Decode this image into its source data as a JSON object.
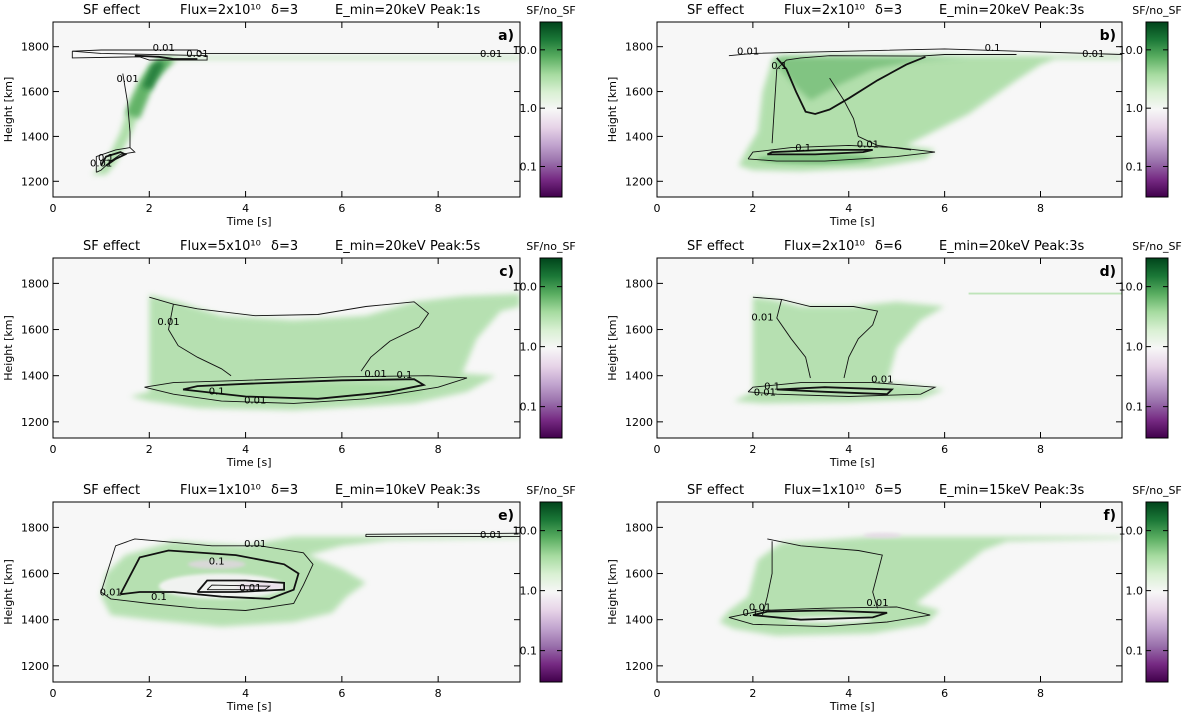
{
  "chart_data": [
    {
      "type": "heatmap",
      "panel": "a)",
      "title": [
        "SF effect",
        "Flux=2x10¹⁰",
        "δ=3",
        "E_min=20keV",
        "Peak:1s"
      ],
      "xlabel": "Time  [s]",
      "ylabel": "Height  [km]",
      "xlim": [
        0,
        9.7
      ],
      "ylim": [
        1130,
        1910
      ],
      "xticks": [
        0,
        2,
        4,
        6,
        8
      ],
      "yticks": [
        1200,
        1400,
        1600,
        1800
      ],
      "colorbar": {
        "label": "SF/no_SF",
        "scale": "log",
        "range": [
          0.03,
          30
        ],
        "ticks": [
          "0.1",
          "1.0",
          "10.0"
        ],
        "colormap": "purple-white-green"
      },
      "contour_labels": [
        {
          "text": "0.01",
          "x": 1.55,
          "y": 1642
        },
        {
          "text": "0.01",
          "x": 1.0,
          "y": 1265
        },
        {
          "text": "0.1",
          "x": 1.1,
          "y": 1290
        },
        {
          "text": "0.01",
          "x": 2.3,
          "y": 1780
        },
        {
          "text": "0.01",
          "x": 3.0,
          "y": 1755
        },
        {
          "text": "0.01",
          "x": 9.1,
          "y": 1755
        }
      ]
    },
    {
      "type": "heatmap",
      "panel": "b)",
      "title": [
        "SF effect",
        "Flux=2x10¹⁰",
        "δ=3",
        "E_min=20keV",
        "Peak:3s"
      ],
      "xlabel": "Time  [s]",
      "ylabel": "Height  [km]",
      "xlim": [
        0,
        9.7
      ],
      "ylim": [
        1130,
        1910
      ],
      "xticks": [
        0,
        2,
        4,
        6,
        8
      ],
      "yticks": [
        1200,
        1400,
        1600,
        1800
      ],
      "colorbar": {
        "label": "SF/no_SF",
        "scale": "log",
        "range": [
          0.03,
          30
        ],
        "ticks": [
          "0.1",
          "1.0",
          "10.0"
        ],
        "colormap": "purple-white-green"
      },
      "contour_labels": [
        {
          "text": "0.01",
          "x": 1.9,
          "y": 1765
        },
        {
          "text": "0.1",
          "x": 2.55,
          "y": 1700
        },
        {
          "text": "0.1",
          "x": 3.05,
          "y": 1335
        },
        {
          "text": "0.01",
          "x": 4.4,
          "y": 1350
        },
        {
          "text": "0.1",
          "x": 7.0,
          "y": 1780
        },
        {
          "text": "0.01",
          "x": 9.1,
          "y": 1755
        }
      ]
    },
    {
      "type": "heatmap",
      "panel": "c)",
      "title": [
        "SF effect",
        "Flux=5x10¹⁰",
        "δ=3",
        "E_min=20keV",
        "Peak:5s"
      ],
      "xlabel": "Time  [s]",
      "ylabel": "Height  [km]",
      "xlim": [
        0,
        9.7
      ],
      "ylim": [
        1130,
        1910
      ],
      "xticks": [
        0,
        2,
        4,
        6,
        8
      ],
      "yticks": [
        1200,
        1400,
        1600,
        1800
      ],
      "colorbar": {
        "label": "SF/no_SF",
        "scale": "log",
        "range": [
          0.03,
          30
        ],
        "ticks": [
          "0.1",
          "1.0",
          "10.0"
        ],
        "colormap": "purple-white-green"
      },
      "contour_labels": [
        {
          "text": "0.01",
          "x": 2.4,
          "y": 1620
        },
        {
          "text": "0.01",
          "x": 6.7,
          "y": 1395
        },
        {
          "text": "0.1",
          "x": 7.3,
          "y": 1390
        },
        {
          "text": "0.1",
          "x": 3.4,
          "y": 1318
        },
        {
          "text": "0.01",
          "x": 4.2,
          "y": 1280
        }
      ]
    },
    {
      "type": "heatmap",
      "panel": "d)",
      "title": [
        "SF effect",
        "Flux=2x10¹⁰",
        "δ=6",
        "E_min=20keV",
        "Peak:3s"
      ],
      "xlabel": "Time  [s]",
      "ylabel": "Height  [km]",
      "xlim": [
        0,
        9.7
      ],
      "ylim": [
        1130,
        1910
      ],
      "xticks": [
        0,
        2,
        4,
        6,
        8
      ],
      "yticks": [
        1200,
        1400,
        1600,
        1800
      ],
      "colorbar": {
        "label": "SF/no_SF",
        "scale": "log",
        "range": [
          0.03,
          30
        ],
        "ticks": [
          "0.1",
          "1.0",
          "10.0"
        ],
        "colormap": "purple-white-green"
      },
      "contour_labels": [
        {
          "text": "0.01",
          "x": 2.2,
          "y": 1640
        },
        {
          "text": "0.1",
          "x": 2.4,
          "y": 1340
        },
        {
          "text": "0.01",
          "x": 2.25,
          "y": 1315
        },
        {
          "text": "0.01",
          "x": 4.7,
          "y": 1370
        }
      ]
    },
    {
      "type": "heatmap",
      "panel": "e)",
      "title": [
        "SF effect",
        "Flux=1x10¹⁰",
        "δ=3",
        "E_min=10keV",
        "Peak:3s"
      ],
      "xlabel": "Time  [s]",
      "ylabel": "Height  [km]",
      "xlim": [
        0,
        9.7
      ],
      "ylim": [
        1130,
        1910
      ],
      "xticks": [
        0,
        2,
        4,
        6,
        8
      ],
      "yticks": [
        1200,
        1400,
        1600,
        1800
      ],
      "colorbar": {
        "label": "SF/no_SF",
        "scale": "log",
        "range": [
          0.03,
          30
        ],
        "ticks": [
          "0.1",
          "1.0",
          "10.0"
        ],
        "colormap": "purple-white-green"
      },
      "contour_labels": [
        {
          "text": "0.01",
          "x": 4.2,
          "y": 1715
        },
        {
          "text": "0.1",
          "x": 3.4,
          "y": 1640
        },
        {
          "text": "0.01",
          "x": 1.2,
          "y": 1505
        },
        {
          "text": "0.1",
          "x": 2.2,
          "y": 1485
        },
        {
          "text": "0.01",
          "x": 4.1,
          "y": 1525
        },
        {
          "text": "0.01",
          "x": 9.1,
          "y": 1755
        }
      ]
    },
    {
      "type": "heatmap",
      "panel": "f)",
      "title": [
        "SF effect",
        "Flux=1x10¹⁰",
        "δ=5",
        "E_min=15keV",
        "Peak:3s"
      ],
      "xlabel": "Time  [s]",
      "ylabel": "Height  [km]",
      "xlim": [
        0,
        9.7
      ],
      "ylim": [
        1130,
        1910
      ],
      "xticks": [
        0,
        2,
        4,
        6,
        8
      ],
      "yticks": [
        1200,
        1400,
        1600,
        1800
      ],
      "colorbar": {
        "label": "SF/no_SF",
        "scale": "log",
        "range": [
          0.03,
          30
        ],
        "ticks": [
          "0.1",
          "1.0",
          "10.0"
        ],
        "colormap": "purple-white-green"
      },
      "contour_labels": [
        {
          "text": "0.01",
          "x": 2.15,
          "y": 1440
        },
        {
          "text": "0.1",
          "x": 1.95,
          "y": 1415
        },
        {
          "text": "0.01",
          "x": 4.6,
          "y": 1460
        }
      ]
    }
  ]
}
